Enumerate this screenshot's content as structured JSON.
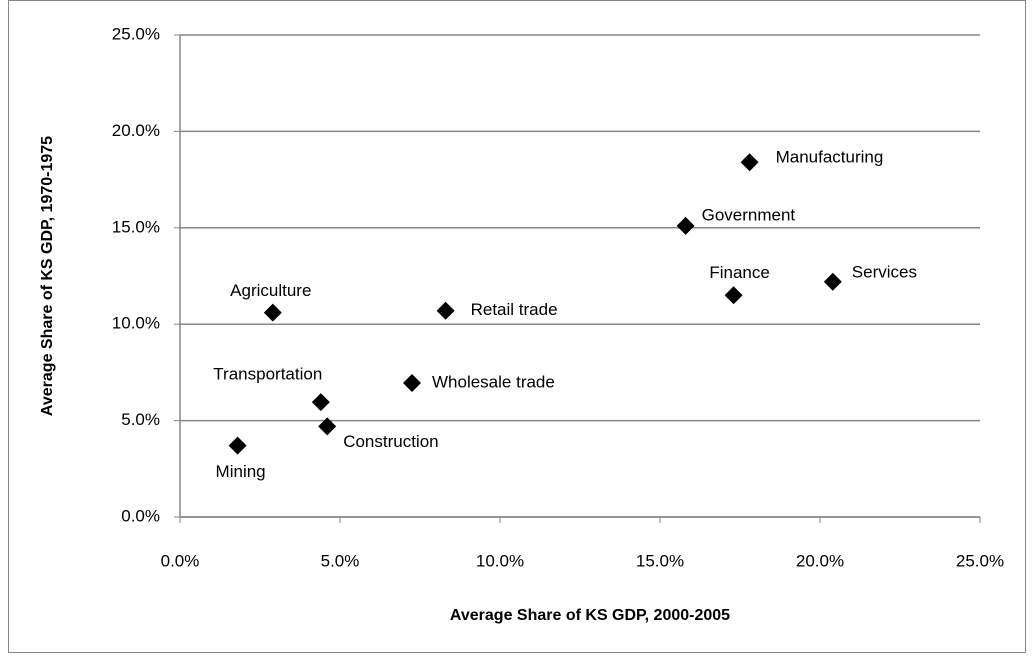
{
  "chart_data": {
    "type": "scatter",
    "x_label": "Average Share of KS GDP, 2000-2005",
    "y_label": "Average Share of KS GDP, 1970-1975",
    "labels": [
      "Manufacturing",
      "Government",
      "Finance",
      "Services",
      "Agriculture",
      "Retail trade",
      "Wholesale trade",
      "Transportation",
      "Construction",
      "Mining"
    ],
    "x": [
      17.8,
      15.8,
      17.3,
      20.4,
      2.9,
      8.3,
      7.25,
      4.4,
      4.6,
      1.8
    ],
    "values": [
      18.4,
      15.1,
      11.5,
      12.2,
      10.6,
      10.7,
      6.95,
      5.96,
      4.7,
      3.7
    ],
    "color": "#000000",
    "xlim": [
      0,
      25
    ],
    "ylim": [
      0,
      25
    ],
    "xticks": [
      {
        "value": 0,
        "label": "0.0%"
      },
      {
        "value": 5,
        "label": "5.0%"
      },
      {
        "value": 10,
        "label": "10.0%"
      },
      {
        "value": 15,
        "label": "15.0%"
      },
      {
        "value": 20,
        "label": "20.0%"
      },
      {
        "value": 25,
        "label": "25.0%"
      }
    ],
    "yticks": [
      {
        "value": 0,
        "label": "0.0%"
      },
      {
        "value": 5,
        "label": "5.0%"
      },
      {
        "value": 10,
        "label": "10.0%"
      },
      {
        "value": 15,
        "label": "15.0%"
      },
      {
        "value": 20,
        "label": "20.0%"
      },
      {
        "value": 25,
        "label": "25.0%"
      }
    ],
    "grid": true
  }
}
